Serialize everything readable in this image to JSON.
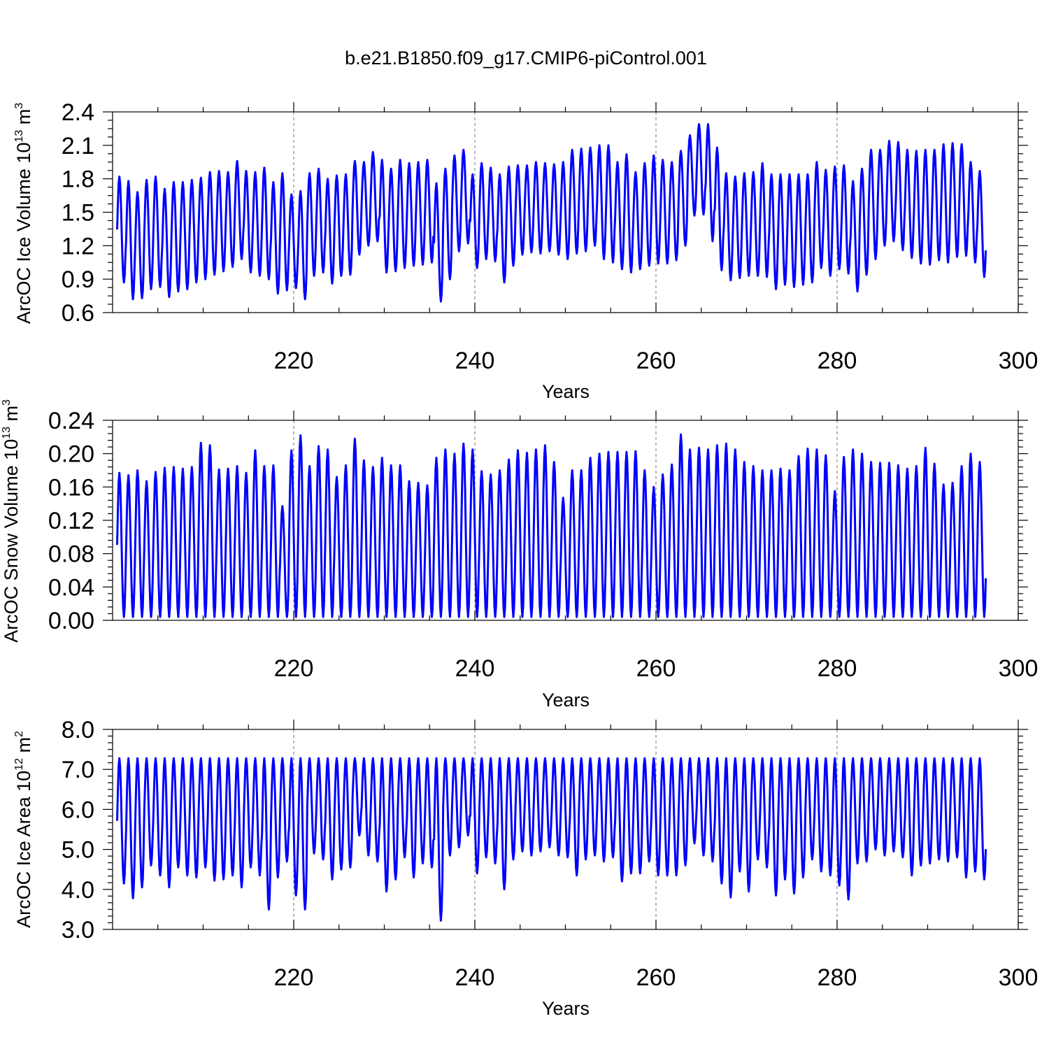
{
  "title": "b.e21.B1850.f09_g17.CMIP6-piControl.001",
  "colors": {
    "series": "#0000ff",
    "grid": "#888888",
    "axis": "#000000"
  },
  "chart_data": [
    {
      "type": "line",
      "id": "ice-volume",
      "ylabel": "ArcOC Ice Volume 10",
      "ylabel_exp": "13",
      "ylabel_unit": " m",
      "ylabel_unit_exp": "3",
      "xlabel": "Years",
      "xlim": [
        200,
        300
      ],
      "ylim": [
        0.6,
        2.4
      ],
      "yticks": [
        "0.6",
        "0.9",
        "1.2",
        "1.5",
        "1.8",
        "2.1",
        "2.4"
      ],
      "xticks": [
        "220",
        "240",
        "260",
        "280",
        "300"
      ],
      "grid": "x-dashed",
      "seasonal_cycle": "annual (monthly samples)",
      "annual_max": [
        1.82,
        1.78,
        1.68,
        1.79,
        1.82,
        1.71,
        1.77,
        1.77,
        1.79,
        1.81,
        1.86,
        1.87,
        1.86,
        1.96,
        1.87,
        1.86,
        1.9,
        1.77,
        1.85,
        1.66,
        1.69,
        1.85,
        1.89,
        1.8,
        1.83,
        1.84,
        1.96,
        1.95,
        2.04,
        1.97,
        1.89,
        1.97,
        1.94,
        1.95,
        1.97,
        1.76,
        1.89,
        2.01,
        2.06,
        1.84,
        1.94,
        1.9,
        1.84,
        1.91,
        1.92,
        1.92,
        1.95,
        1.94,
        1.93,
        1.95,
        2.06,
        2.07,
        2.08,
        2.1,
        2.1,
        1.95,
        2.02,
        1.86,
        1.94,
        2.01,
        1.97,
        1.95,
        2.05,
        2.19,
        2.29,
        2.29,
        2.08,
        1.85,
        1.82,
        1.85,
        1.86,
        1.94,
        1.84,
        1.84,
        1.84,
        1.84,
        1.84,
        1.95,
        1.88,
        1.91,
        1.92,
        1.78,
        1.89,
        2.06,
        2.06,
        2.14,
        2.13,
        2.06,
        2.05,
        2.06,
        2.06,
        2.11,
        2.12,
        2.11,
        1.95,
        1.87
      ],
      "annual_min": [
        0.87,
        0.72,
        0.73,
        0.81,
        0.83,
        0.74,
        0.79,
        0.81,
        0.87,
        0.9,
        0.94,
        0.97,
        1.01,
        1.08,
        0.96,
        0.93,
        0.9,
        0.77,
        0.8,
        0.82,
        0.72,
        0.93,
        0.96,
        0.86,
        0.93,
        0.94,
        1.12,
        1.2,
        1.24,
        0.96,
        0.97,
        1.0,
        1.02,
        1.03,
        1.05,
        0.7,
        0.9,
        1.15,
        1.22,
        1.0,
        1.08,
        1.06,
        0.87,
        1.02,
        1.12,
        1.14,
        1.13,
        1.15,
        1.12,
        1.08,
        1.13,
        1.15,
        1.2,
        1.08,
        1.05,
        0.99,
        0.96,
        0.99,
        1.02,
        1.04,
        1.04,
        1.07,
        1.2,
        1.47,
        1.48,
        1.24,
        0.98,
        0.89,
        0.91,
        0.93,
        0.93,
        0.92,
        0.81,
        0.85,
        0.83,
        0.85,
        0.87,
        1.0,
        0.93,
        0.99,
        0.95,
        0.79,
        0.94,
        1.08,
        1.2,
        1.24,
        1.16,
        1.09,
        1.04,
        1.03,
        1.07,
        1.05,
        1.1,
        1.11,
        1.05,
        0.92
      ]
    },
    {
      "type": "line",
      "id": "snow-volume",
      "ylabel": "ArcOC Snow Volume 10",
      "ylabel_exp": "13",
      "ylabel_unit": " m",
      "ylabel_unit_exp": "3",
      "xlabel": "Years",
      "xlim": [
        200,
        300
      ],
      "ylim": [
        0.0,
        0.24
      ],
      "yticks": [
        "0.00",
        "0.04",
        "0.08",
        "0.12",
        "0.16",
        "0.20",
        "0.24"
      ],
      "xticks": [
        "220",
        "240",
        "260",
        "280",
        "300"
      ],
      "grid": "x-dashed",
      "seasonal_cycle": "annual (monthly samples)",
      "annual_max": [
        0.177,
        0.174,
        0.18,
        0.167,
        0.178,
        0.183,
        0.184,
        0.182,
        0.184,
        0.213,
        0.21,
        0.181,
        0.182,
        0.185,
        0.177,
        0.204,
        0.185,
        0.186,
        0.137,
        0.204,
        0.222,
        0.185,
        0.209,
        0.205,
        0.172,
        0.186,
        0.218,
        0.192,
        0.184,
        0.195,
        0.186,
        0.186,
        0.167,
        0.165,
        0.162,
        0.195,
        0.205,
        0.2,
        0.212,
        0.205,
        0.179,
        0.175,
        0.18,
        0.193,
        0.204,
        0.201,
        0.205,
        0.21,
        0.19,
        0.147,
        0.18,
        0.18,
        0.195,
        0.2,
        0.202,
        0.202,
        0.202,
        0.203,
        0.18,
        0.16,
        0.175,
        0.187,
        0.223,
        0.205,
        0.207,
        0.205,
        0.21,
        0.212,
        0.205,
        0.19,
        0.185,
        0.18,
        0.18,
        0.182,
        0.18,
        0.197,
        0.206,
        0.205,
        0.198,
        0.155,
        0.196,
        0.205,
        0.2,
        0.19,
        0.189,
        0.189,
        0.186,
        0.182,
        0.185,
        0.207,
        0.188,
        0.163,
        0.165,
        0.185,
        0.2,
        0.19
      ],
      "annual_min": [
        0.004,
        0.004,
        0.004,
        0.004,
        0.004,
        0.004,
        0.004,
        0.004,
        0.004,
        0.004,
        0.004,
        0.004,
        0.004,
        0.004,
        0.004,
        0.004,
        0.004,
        0.004,
        0.004,
        0.004,
        0.004,
        0.004,
        0.004,
        0.004,
        0.004,
        0.004,
        0.004,
        0.004,
        0.004,
        0.004,
        0.004,
        0.004,
        0.004,
        0.004,
        0.004,
        0.004,
        0.004,
        0.004,
        0.004,
        0.004,
        0.004,
        0.004,
        0.004,
        0.004,
        0.004,
        0.004,
        0.004,
        0.004,
        0.004,
        0.004,
        0.004,
        0.004,
        0.004,
        0.004,
        0.004,
        0.004,
        0.004,
        0.004,
        0.004,
        0.004,
        0.004,
        0.004,
        0.004,
        0.004,
        0.004,
        0.004,
        0.004,
        0.004,
        0.004,
        0.004,
        0.004,
        0.004,
        0.004,
        0.004,
        0.004,
        0.004,
        0.004,
        0.004,
        0.004,
        0.004,
        0.004,
        0.004,
        0.004,
        0.004,
        0.004,
        0.004,
        0.004,
        0.004,
        0.004,
        0.004,
        0.004,
        0.004,
        0.004,
        0.004,
        0.004,
        0.004
      ]
    },
    {
      "type": "line",
      "id": "ice-area",
      "ylabel": "ArcOC Ice Area 10",
      "ylabel_exp": "12",
      "ylabel_unit": " m",
      "ylabel_unit_exp": "2",
      "xlabel": "Years",
      "xlim": [
        200,
        300
      ],
      "ylim": [
        3.0,
        8.0
      ],
      "yticks": [
        "3.0",
        "4.0",
        "5.0",
        "6.0",
        "7.0",
        "8.0"
      ],
      "xticks": [
        "220",
        "240",
        "260",
        "280",
        "300"
      ],
      "grid": "x-dashed",
      "seasonal_cycle": "annual (monthly samples)",
      "annual_max": [
        7.28,
        7.28,
        7.28,
        7.28,
        7.28,
        7.28,
        7.28,
        7.28,
        7.28,
        7.28,
        7.28,
        7.28,
        7.28,
        7.28,
        7.28,
        7.28,
        7.28,
        7.28,
        7.28,
        7.28,
        7.28,
        7.28,
        7.28,
        7.28,
        7.28,
        7.28,
        7.28,
        7.28,
        7.28,
        7.28,
        7.28,
        7.28,
        7.28,
        7.28,
        7.28,
        7.28,
        7.28,
        7.28,
        7.28,
        7.28,
        7.28,
        7.28,
        7.28,
        7.28,
        7.28,
        7.28,
        7.28,
        7.28,
        7.28,
        7.28,
        7.28,
        7.28,
        7.28,
        7.28,
        7.28,
        7.28,
        7.28,
        7.28,
        7.28,
        7.28,
        7.28,
        7.28,
        7.28,
        7.28,
        7.28,
        7.28,
        7.28,
        7.28,
        7.28,
        7.28,
        7.28,
        7.28,
        7.28,
        7.28,
        7.28,
        7.28,
        7.28,
        7.28,
        7.28,
        7.28,
        7.28,
        7.28,
        7.28,
        7.28,
        7.28,
        7.28,
        7.28,
        7.28,
        7.28,
        7.28,
        7.28,
        7.28,
        7.28,
        7.28,
        7.28,
        7.28
      ],
      "annual_min": [
        4.15,
        3.78,
        4.05,
        4.6,
        4.35,
        4.05,
        4.55,
        4.35,
        4.3,
        4.55,
        4.22,
        4.25,
        4.35,
        4.05,
        4.55,
        4.35,
        3.5,
        4.3,
        4.7,
        3.85,
        3.5,
        4.9,
        4.75,
        4.25,
        4.5,
        4.55,
        5.35,
        4.85,
        4.7,
        3.95,
        4.25,
        4.8,
        4.3,
        4.65,
        4.55,
        3.22,
        4.85,
        5.05,
        5.35,
        4.4,
        4.8,
        4.65,
        4.0,
        4.75,
        4.95,
        4.85,
        4.95,
        5.05,
        4.85,
        4.8,
        4.35,
        4.75,
        4.85,
        4.7,
        4.8,
        4.2,
        4.4,
        4.4,
        4.7,
        4.35,
        4.35,
        4.35,
        4.6,
        5.15,
        4.85,
        4.7,
        4.15,
        3.8,
        4.45,
        3.95,
        4.75,
        4.55,
        3.85,
        4.25,
        3.9,
        4.3,
        4.75,
        4.45,
        4.35,
        4.1,
        3.75,
        4.65,
        4.7,
        5.0,
        4.85,
        4.95,
        4.8,
        4.35,
        4.6,
        4.65,
        4.75,
        4.7,
        4.8,
        4.3,
        4.45,
        4.25
      ]
    }
  ]
}
